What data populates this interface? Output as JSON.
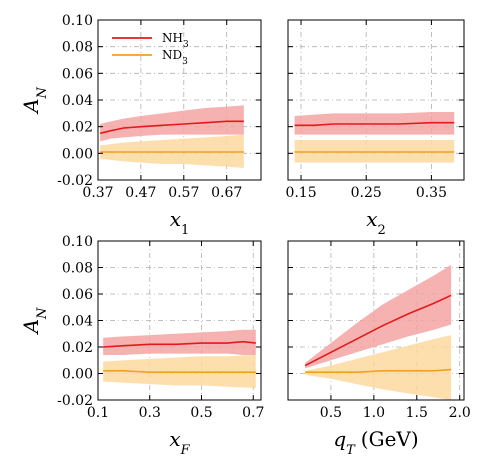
{
  "colors": {
    "nh3": "#e31a1c",
    "nh3_band": "#f4a3a3",
    "nd3": "#f0a020",
    "nd3_band": "#fdd9a0",
    "grid": "#b0b0b0"
  },
  "legend": {
    "entries": [
      {
        "series": "nh3",
        "base": "NH",
        "sub": "3"
      },
      {
        "series": "nd3",
        "base": "ND",
        "sub": "3"
      }
    ]
  },
  "chart_data": [
    {
      "type": "line",
      "panel": "top-left",
      "xlabel": {
        "base": "x",
        "sub": "1",
        "suffix": ""
      },
      "ylabel": {
        "base": "A",
        "sub": "N"
      },
      "xlim": [
        0.37,
        0.75
      ],
      "ylim": [
        -0.02,
        0.1
      ],
      "xticks": [
        0.37,
        0.47,
        0.57,
        0.67
      ],
      "xtick_labels": [
        "0.37",
        "0.47",
        "0.57",
        "0.67"
      ],
      "yticks": [
        -0.02,
        0.0,
        0.02,
        0.04,
        0.06,
        0.08,
        0.1
      ],
      "ytick_labels": [
        "-0.02",
        "0.00",
        "0.02",
        "0.04",
        "0.06",
        "0.08",
        "0.10"
      ],
      "show_yticklabels": true,
      "grid": true,
      "series": [
        {
          "key": "nh3",
          "x": [
            0.375,
            0.4,
            0.43,
            0.47,
            0.52,
            0.57,
            0.62,
            0.67,
            0.71
          ],
          "y": [
            0.015,
            0.017,
            0.019,
            0.02,
            0.021,
            0.022,
            0.023,
            0.024,
            0.024
          ],
          "lower": [
            0.009,
            0.011,
            0.012,
            0.013,
            0.014,
            0.014,
            0.014,
            0.014,
            0.014
          ],
          "upper": [
            0.022,
            0.024,
            0.026,
            0.028,
            0.03,
            0.032,
            0.034,
            0.035,
            0.036
          ]
        },
        {
          "key": "nd3",
          "x": [
            0.375,
            0.43,
            0.47,
            0.52,
            0.57,
            0.62,
            0.67,
            0.71
          ],
          "y": [
            0.001,
            0.001,
            0.001,
            0.001,
            0.001,
            0.001,
            0.001,
            0.001
          ],
          "lower": [
            -0.004,
            -0.006,
            -0.007,
            -0.008,
            -0.008,
            -0.009,
            -0.01,
            -0.011
          ],
          "upper": [
            0.006,
            0.008,
            0.009,
            0.01,
            0.011,
            0.012,
            0.013,
            0.014
          ]
        }
      ]
    },
    {
      "type": "line",
      "panel": "top-right",
      "xlabel": {
        "base": "x",
        "sub": "2",
        "suffix": ""
      },
      "xlim": [
        0.13,
        0.4
      ],
      "ylim": [
        -0.02,
        0.1
      ],
      "xticks": [
        0.15,
        0.25,
        0.35
      ],
      "xtick_labels": [
        "0.15",
        "0.25",
        "0.35"
      ],
      "yticks": [
        -0.02,
        0.0,
        0.02,
        0.04,
        0.06,
        0.08,
        0.1
      ],
      "show_yticklabels": false,
      "grid": true,
      "series": [
        {
          "key": "nh3",
          "x": [
            0.14,
            0.17,
            0.2,
            0.25,
            0.3,
            0.35,
            0.385
          ],
          "y": [
            0.021,
            0.021,
            0.022,
            0.022,
            0.022,
            0.023,
            0.023
          ],
          "lower": [
            0.014,
            0.014,
            0.014,
            0.014,
            0.014,
            0.014,
            0.014
          ],
          "upper": [
            0.028,
            0.029,
            0.03,
            0.03,
            0.03,
            0.031,
            0.031
          ]
        },
        {
          "key": "nd3",
          "x": [
            0.14,
            0.17,
            0.2,
            0.25,
            0.3,
            0.35,
            0.385
          ],
          "y": [
            0.001,
            0.001,
            0.001,
            0.001,
            0.001,
            0.001,
            0.001
          ],
          "lower": [
            -0.007,
            -0.007,
            -0.007,
            -0.007,
            -0.007,
            -0.007,
            -0.007
          ],
          "upper": [
            0.01,
            0.01,
            0.01,
            0.01,
            0.01,
            0.01,
            0.01
          ]
        }
      ]
    },
    {
      "type": "line",
      "panel": "bottom-left",
      "xlabel": {
        "base": "x",
        "sub": "F",
        "suffix": ""
      },
      "ylabel": {
        "base": "A",
        "sub": "N"
      },
      "xlim": [
        0.1,
        0.73
      ],
      "ylim": [
        -0.02,
        0.1
      ],
      "xticks": [
        0.1,
        0.3,
        0.5,
        0.7
      ],
      "xtick_labels": [
        "0.1",
        "0.3",
        "0.5",
        "0.7"
      ],
      "yticks": [
        -0.02,
        0.0,
        0.02,
        0.04,
        0.06,
        0.08,
        0.1
      ],
      "ytick_labels": [
        "-0.02",
        "0.00",
        "0.02",
        "0.04",
        "0.06",
        "0.08",
        "0.10"
      ],
      "show_yticklabels": true,
      "grid": true,
      "series": [
        {
          "key": "nh3",
          "x": [
            0.12,
            0.2,
            0.3,
            0.4,
            0.5,
            0.6,
            0.66,
            0.71
          ],
          "y": [
            0.02,
            0.021,
            0.022,
            0.022,
            0.023,
            0.023,
            0.024,
            0.023
          ],
          "lower": [
            0.014,
            0.014,
            0.015,
            0.015,
            0.015,
            0.015,
            0.014,
            0.014
          ],
          "upper": [
            0.027,
            0.028,
            0.029,
            0.03,
            0.031,
            0.032,
            0.033,
            0.033
          ]
        },
        {
          "key": "nd3",
          "x": [
            0.12,
            0.2,
            0.3,
            0.4,
            0.5,
            0.6,
            0.71
          ],
          "y": [
            0.002,
            0.002,
            0.001,
            0.001,
            0.001,
            0.001,
            0.001
          ],
          "lower": [
            -0.006,
            -0.007,
            -0.008,
            -0.009,
            -0.009,
            -0.01,
            -0.011
          ],
          "upper": [
            0.009,
            0.01,
            0.011,
            0.012,
            0.013,
            0.013,
            0.014
          ]
        }
      ]
    },
    {
      "type": "line",
      "panel": "bottom-right",
      "xlabel": {
        "base": "q",
        "sub": "T",
        "suffix": "(GeV)"
      },
      "xlim": [
        0.0,
        2.05
      ],
      "ylim": [
        -0.02,
        0.1
      ],
      "xticks": [
        0.5,
        1.0,
        1.5,
        2.0
      ],
      "xtick_labels": [
        "0.5",
        "1.0",
        "1.5",
        "2.0"
      ],
      "yticks": [
        -0.02,
        0.0,
        0.02,
        0.04,
        0.06,
        0.08,
        0.1
      ],
      "show_yticklabels": false,
      "grid": true,
      "series": [
        {
          "key": "nh3",
          "x": [
            0.2,
            0.5,
            0.8,
            1.1,
            1.4,
            1.7,
            1.9
          ],
          "y": [
            0.006,
            0.016,
            0.026,
            0.036,
            0.045,
            0.053,
            0.059
          ],
          "lower": [
            0.004,
            0.01,
            0.016,
            0.022,
            0.028,
            0.033,
            0.037
          ],
          "upper": [
            0.008,
            0.023,
            0.038,
            0.052,
            0.063,
            0.074,
            0.082
          ]
        },
        {
          "key": "nd3",
          "x": [
            0.2,
            0.5,
            0.8,
            1.1,
            1.4,
            1.7,
            1.9
          ],
          "y": [
            0.001,
            0.001,
            0.001,
            0.002,
            0.002,
            0.002,
            0.003
          ],
          "lower": [
            -0.001,
            -0.004,
            -0.008,
            -0.012,
            -0.015,
            -0.018,
            -0.02
          ],
          "upper": [
            0.002,
            0.006,
            0.011,
            0.016,
            0.021,
            0.026,
            0.029
          ]
        }
      ]
    }
  ]
}
